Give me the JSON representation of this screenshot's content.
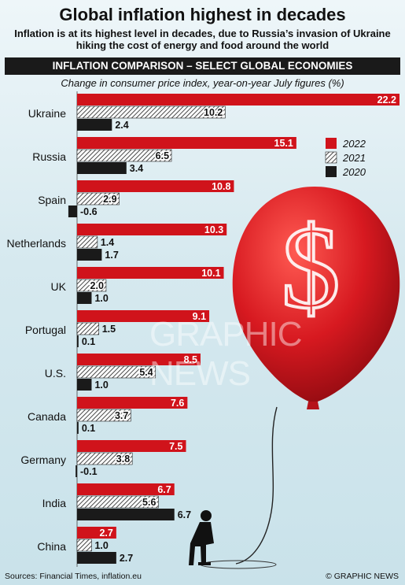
{
  "header": {
    "title": "Global inflation highest in decades",
    "subtitle": "Inflation is at its highest level in decades, due to Russia’s invasion of Ukraine hiking the cost of energy and food around the world"
  },
  "section_title": "INFLATION COMPARISON – SELECT GLOBAL ECONOMIES",
  "watermark": "GRAPHIC NEWS",
  "footer": {
    "sources": "Sources: Financial Times, inflation.eu",
    "credit": "© GRAPHIC NEWS"
  },
  "chart_data": {
    "type": "bar",
    "orientation": "horizontal",
    "subtitle": "Change in consumer price index, year-on-year July figures (%)",
    "categories": [
      "Ukraine",
      "Russia",
      "Spain",
      "Netherlands",
      "UK",
      "Portugal",
      "U.S.",
      "Canada",
      "Germany",
      "India",
      "China"
    ],
    "series": [
      {
        "name": "2022",
        "color": "#d0131b",
        "values": [
          22.2,
          15.1,
          10.8,
          10.3,
          10.1,
          9.1,
          8.5,
          7.6,
          7.5,
          6.7,
          2.7
        ]
      },
      {
        "name": "2021",
        "color": "hatched",
        "values": [
          10.2,
          6.5,
          2.9,
          1.4,
          2.0,
          1.5,
          5.4,
          3.7,
          3.8,
          5.6,
          1.0
        ]
      },
      {
        "name": "2020",
        "color": "#1a1a1a",
        "values": [
          2.4,
          3.4,
          -0.6,
          1.7,
          1.0,
          0.1,
          1.0,
          0.1,
          -0.1,
          6.7,
          2.7
        ]
      }
    ],
    "value_labels": [
      [
        "22.2",
        "10.2",
        "2.4"
      ],
      [
        "15.1",
        "6.5",
        "3.4"
      ],
      [
        "10.8",
        "2.9",
        "-0.6"
      ],
      [
        "10.3",
        "1.4",
        "1.7"
      ],
      [
        "10.1",
        "2.0",
        "1.0"
      ],
      [
        "9.1",
        "1.5",
        "0.1"
      ],
      [
        "8.5",
        "5.4",
        "1.0"
      ],
      [
        "7.6",
        "3.7",
        "0.1"
      ],
      [
        "7.5",
        "3.8",
        "-0.1"
      ],
      [
        "6.7",
        "5.6",
        "6.7"
      ],
      [
        "2.7",
        "1.0",
        "2.7"
      ]
    ],
    "xlim": [
      -0.6,
      22.2
    ],
    "legend_position": "right",
    "grid": false
  }
}
